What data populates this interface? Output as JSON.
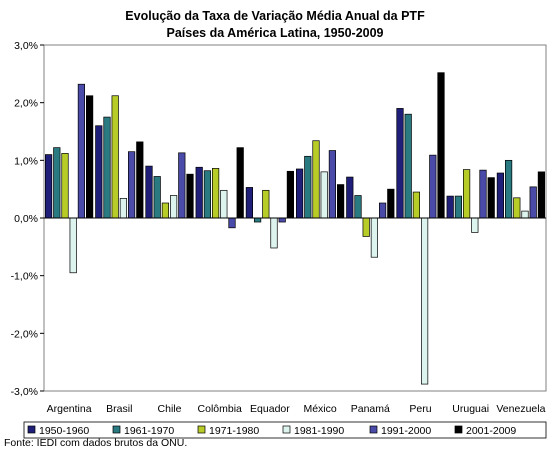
{
  "chart_data": {
    "type": "bar",
    "title": "Evolução da Taxa de Variação Média Anual da PTF",
    "subtitle": "Países da América Latina, 1950-2009",
    "ylim": [
      -3.0,
      3.0
    ],
    "yticks": [
      "3,0%",
      "2,0%",
      "1,0%",
      "0,0%",
      "-1,0%",
      "-2,0%",
      "-3,0%"
    ],
    "ytick_values": [
      3,
      2,
      1,
      0,
      -1,
      -2,
      -3
    ],
    "grid": false,
    "legend_position": "bottom",
    "categories": [
      "Argentina",
      "Brasil",
      "Chile",
      "Colômbia",
      "Equador",
      "México",
      "Panamá",
      "Peru",
      "Uruguai",
      "Venezuela"
    ],
    "series": [
      {
        "name": "1950-1960",
        "color": "#1f1f7a",
        "values": [
          1.1,
          1.6,
          0.9,
          0.88,
          0.53,
          0.85,
          0.71,
          1.9,
          0.38,
          0.78
        ]
      },
      {
        "name": "1961-1970",
        "color": "#2a7a82",
        "values": [
          1.22,
          1.75,
          0.72,
          0.82,
          -0.07,
          1.07,
          0.39,
          1.8,
          0.38,
          1.0
        ]
      },
      {
        "name": "1971-1980",
        "color": "#b8cc28",
        "values": [
          1.12,
          2.12,
          0.26,
          0.86,
          0.48,
          1.34,
          -0.32,
          0.45,
          0.84,
          0.35
        ]
      },
      {
        "name": "1981-1990",
        "color": "#ddf3ee",
        "values": [
          -0.95,
          0.34,
          0.39,
          0.48,
          -0.52,
          0.8,
          -0.68,
          -2.88,
          -0.25,
          0.12
        ]
      },
      {
        "name": "1991-2000",
        "color": "#4a4aa8",
        "values": [
          2.32,
          1.15,
          1.13,
          -0.17,
          -0.07,
          1.17,
          0.26,
          1.09,
          0.83,
          0.54
        ]
      },
      {
        "name": "2001-2009",
        "color": "#000000",
        "values": [
          2.12,
          1.32,
          0.76,
          1.22,
          0.81,
          0.58,
          0.5,
          2.52,
          0.7,
          0.8
        ]
      }
    ]
  },
  "source": "Fonte: IEDI com dados brutos da ONU."
}
